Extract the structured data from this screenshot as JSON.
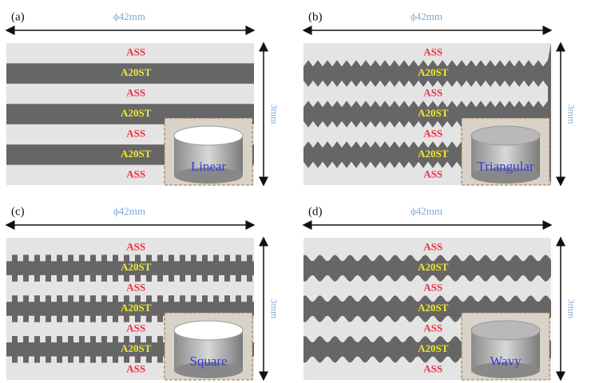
{
  "panels": [
    {
      "label": "(a)",
      "diameter": "ϕ42mm",
      "height": "3mm",
      "layers": [
        "ASS",
        "A20ST",
        "ASS",
        "A20ST",
        "ASS",
        "A20ST",
        "ASS"
      ],
      "shape": "Linear"
    },
    {
      "label": "(b)",
      "diameter": "ϕ42mm",
      "height": "3mm",
      "layers": [
        "ASS",
        "A20ST",
        "ASS",
        "A20ST",
        "ASS",
        "A20ST",
        "ASS"
      ],
      "shape": "Triangular"
    },
    {
      "label": "(c)",
      "diameter": "ϕ42mm",
      "height": "3mm",
      "layers": [
        "ASS",
        "A20ST",
        "ASS",
        "A20ST",
        "ASS",
        "A20ST",
        "ASS"
      ],
      "shape": "Square"
    },
    {
      "label": "(d)",
      "diameter": "ϕ42mm",
      "height": "3mm",
      "layers": [
        "ASS",
        "A20ST",
        "ASS",
        "A20ST",
        "ASS",
        "A20ST",
        "ASS"
      ],
      "shape": "Wavy"
    }
  ]
}
